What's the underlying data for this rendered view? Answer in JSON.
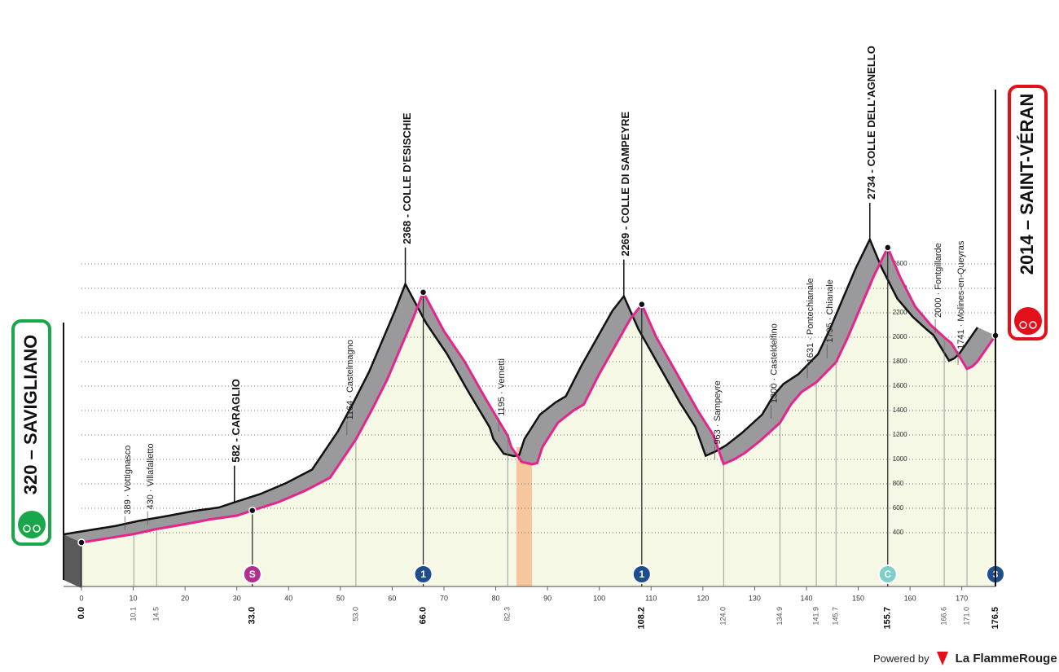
{
  "chart_data": {
    "type": "area",
    "x": [
      0,
      10.1,
      14.5,
      20,
      25,
      30,
      33,
      38,
      43,
      48,
      53,
      56,
      59,
      62,
      64,
      66,
      70,
      74,
      78,
      82.3,
      83,
      85,
      87,
      88,
      89,
      92,
      95,
      97,
      100,
      104,
      106,
      108.2,
      111,
      115,
      119,
      122,
      124,
      126,
      128,
      131,
      134.9,
      137,
      139,
      141.9,
      143.5,
      145.7,
      148,
      151,
      153,
      155.7,
      158,
      161,
      164,
      166.6,
      168,
      171,
      172,
      173,
      176.5
    ],
    "values": [
      320,
      389,
      430,
      470,
      510,
      540,
      582,
      650,
      740,
      850,
      1164,
      1400,
      1650,
      1950,
      2150,
      2368,
      2050,
      1800,
      1500,
      1195,
      1100,
      980,
      960,
      970,
      1100,
      1300,
      1400,
      1450,
      1700,
      2000,
      2150,
      2269,
      2000,
      1700,
      1400,
      1200,
      963,
      1000,
      1050,
      1150,
      1300,
      1450,
      1550,
      1631,
      1700,
      1795,
      2000,
      2300,
      2500,
      2734,
      2500,
      2250,
      2100,
      2000,
      1950,
      1741,
      1760,
      1800,
      2014
    ],
    "color": "#e6258c",
    "xlim": [
      0,
      176.5
    ],
    "ylim": [
      0,
      2800
    ],
    "xticks": [
      0,
      10,
      20,
      30,
      40,
      50,
      60,
      70,
      80,
      90,
      100,
      110,
      120,
      130,
      140,
      150,
      160,
      170
    ],
    "yticks": [
      400,
      600,
      800,
      1000,
      1200,
      1400,
      1600,
      1800,
      2000,
      2200,
      2400,
      2600
    ],
    "grid": true,
    "feed_zone": [
      84,
      87
    ],
    "waypoints": [
      {
        "kind": "start",
        "label": "320 – SAVIGLIANO",
        "elevation": 320,
        "km": {
          "value": 0,
          "label": "0.0"
        },
        "color": "#1aa64a"
      },
      {
        "kind": "minor",
        "label": "389 · Vottignasco",
        "elevation": 389,
        "km": 10.1
      },
      {
        "kind": "minor",
        "label": "430 · Villafalletto",
        "elevation": 430,
        "km": 14.5
      },
      {
        "kind": "major",
        "label": "582 - CARAGLIO",
        "elevation": 582,
        "km": {
          "value": 33,
          "label": "33.0"
        },
        "badge": {
          "label": "S",
          "color": "#b0308f"
        }
      },
      {
        "kind": "minor",
        "label": "1164 · Castelmagno",
        "elevation": 1164,
        "km": {
          "value": 53,
          "label": "53.0"
        }
      },
      {
        "kind": "major",
        "label": "2368 - COLLE D'ESISCHIE",
        "elevation": 2368,
        "km": {
          "value": 66,
          "label": "66.0"
        },
        "badge": {
          "label": "1",
          "color": "#1f4e8c"
        }
      },
      {
        "kind": "minor",
        "label": "1195 · Vernetti",
        "elevation": 1195,
        "km": 82.3
      },
      {
        "kind": "major",
        "label": "2269 - COLLE DI SAMPEYRE",
        "elevation": 2269,
        "km": 108.2,
        "badge": {
          "label": "1",
          "color": "#1f4e8c"
        }
      },
      {
        "kind": "minor",
        "label": "963 · Sampeyre",
        "elevation": 963,
        "km": {
          "value": 124,
          "label": "124.0"
        }
      },
      {
        "kind": "minor",
        "label": "1300 · Casteldelfino",
        "elevation": 1300,
        "km": 134.9
      },
      {
        "kind": "minor",
        "label": "1631 · Pontechianale",
        "elevation": 1631,
        "km": 141.9
      },
      {
        "kind": "minor",
        "label": "1795 · Chianale",
        "elevation": 1795,
        "km": 145.7
      },
      {
        "kind": "major",
        "label": "2734 - COLLE DELL'AGNELLO",
        "elevation": 2734,
        "km": 155.7,
        "badge": {
          "label": "C",
          "color": "#7fcfc9"
        }
      },
      {
        "kind": "minor",
        "label": "2000 · Fontgillarde",
        "elevation": 2000,
        "km": 166.6
      },
      {
        "kind": "minor",
        "label": "1741 · Molines-en-Queyras",
        "elevation": 1741,
        "km": {
          "value": 171,
          "label": "171.0"
        }
      },
      {
        "kind": "finish",
        "label": "2014 – SAINT-VÉRAN",
        "elevation": 2014,
        "km": 176.5,
        "color": "#e3101c",
        "badge": {
          "label": "3",
          "color": "#1f4e8c"
        }
      }
    ]
  },
  "footer": {
    "powered": "Powered by",
    "brand": "La FlammeRouge"
  }
}
